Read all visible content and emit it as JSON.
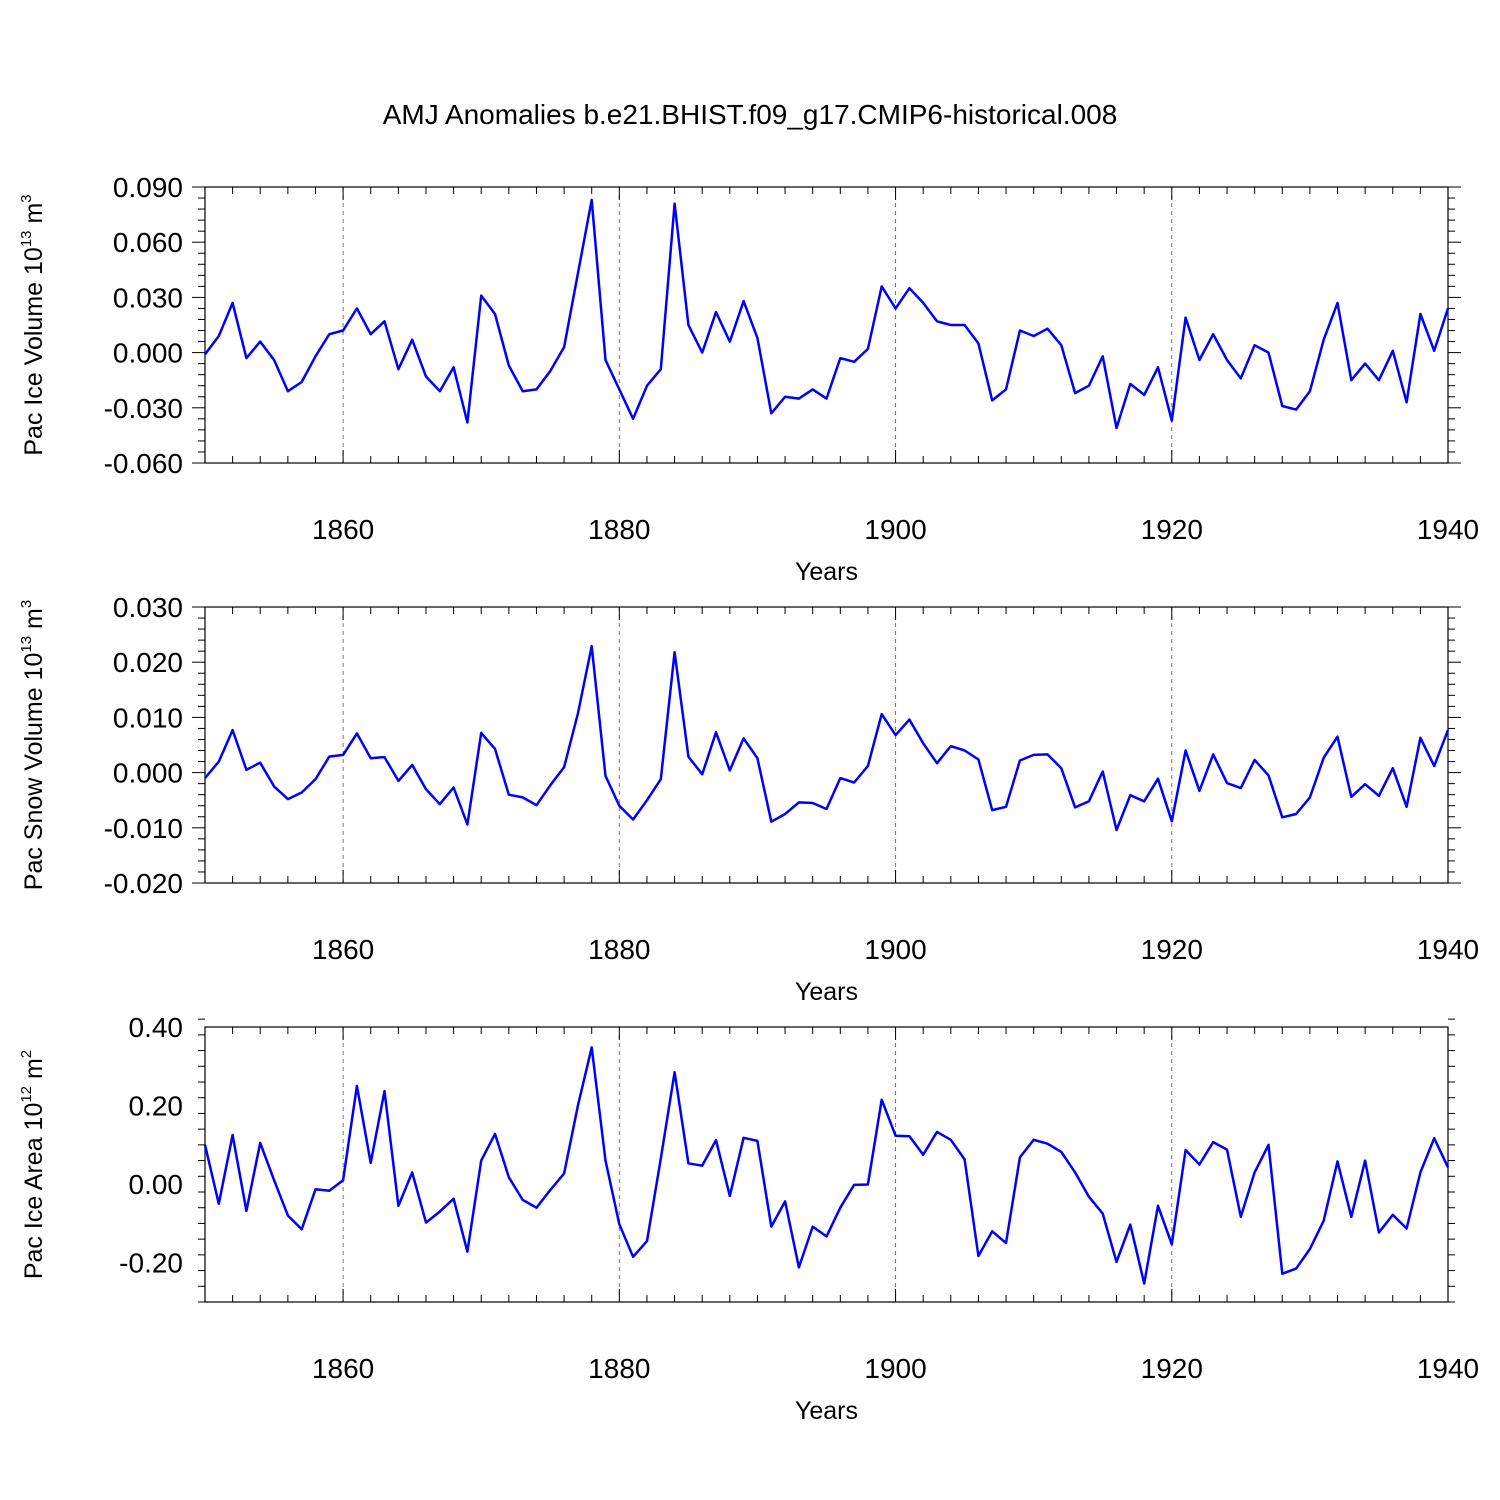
{
  "title": "AMJ Anomalies b.e21.BHIST.f09_g17.CMIP6-historical.008",
  "line_color": "#0000ff",
  "chart_data": [
    {
      "type": "line",
      "ylabel_main": "Pac Ice Volume 10",
      "ylabel_exp": "13",
      "ylabel_unit": " m",
      "ylabel_unit_exp": "3",
      "xlabel": "Years",
      "xlim": [
        1850,
        1940
      ],
      "ylim": [
        -0.06,
        0.09
      ],
      "yticks": [
        -0.06,
        -0.03,
        0.0,
        0.03,
        0.06,
        0.09
      ],
      "ytick_labels": [
        "-0.060",
        "-0.030",
        "0.000",
        "0.030",
        "0.060",
        "0.090"
      ],
      "xticks": [
        1860,
        1880,
        1900,
        1920,
        1940
      ],
      "xtick_labels": [
        "1860",
        "1880",
        "1900",
        "1920",
        "1940"
      ],
      "x_start": 1850,
      "values": [
        -0.001,
        0.009,
        0.027,
        -0.003,
        0.006,
        -0.004,
        -0.021,
        -0.016,
        -0.002,
        0.01,
        0.012,
        0.024,
        0.01,
        0.017,
        -0.009,
        0.007,
        -0.013,
        -0.021,
        -0.008,
        -0.038,
        0.031,
        0.021,
        -0.007,
        -0.021,
        -0.02,
        -0.01,
        0.003,
        0.043,
        0.083,
        -0.004,
        -0.02,
        -0.036,
        -0.018,
        -0.009,
        0.081,
        0.015,
        0.0,
        0.022,
        0.006,
        0.028,
        0.008,
        -0.033,
        -0.024,
        -0.025,
        -0.02,
        -0.025,
        -0.003,
        -0.005,
        0.002,
        0.036,
        0.024,
        0.035,
        0.027,
        0.017,
        0.015,
        0.015,
        0.005,
        -0.026,
        -0.02,
        0.012,
        0.009,
        0.013,
        0.004,
        -0.022,
        -0.018,
        -0.002,
        -0.041,
        -0.017,
        -0.023,
        -0.008,
        -0.037,
        0.019,
        -0.004,
        0.01,
        -0.004,
        -0.014,
        0.004,
        0.0,
        -0.029,
        -0.031,
        -0.021,
        0.007,
        0.027,
        -0.015,
        -0.006,
        -0.015,
        0.001,
        -0.027,
        0.021,
        0.001,
        0.024
      ]
    },
    {
      "type": "line",
      "ylabel_main": "Pac Snow Volume 10",
      "ylabel_exp": "13",
      "ylabel_unit": " m",
      "ylabel_unit_exp": "3",
      "xlabel": "Years",
      "xlim": [
        1850,
        1940
      ],
      "ylim": [
        -0.02,
        0.03
      ],
      "yticks": [
        -0.02,
        -0.01,
        0.0,
        0.01,
        0.02,
        0.03
      ],
      "ytick_labels": [
        "-0.020",
        "-0.010",
        "0.000",
        "0.010",
        "0.020",
        "0.030"
      ],
      "xticks": [
        1860,
        1880,
        1900,
        1920,
        1940
      ],
      "xtick_labels": [
        "1860",
        "1880",
        "1900",
        "1920",
        "1940"
      ],
      "x_start": 1850,
      "values": [
        -0.001,
        0.002,
        0.0077,
        0.0005,
        0.0018,
        -0.0025,
        -0.0048,
        -0.0036,
        -0.0012,
        0.0029,
        0.0032,
        0.0071,
        0.0026,
        0.0028,
        -0.0015,
        0.0014,
        -0.003,
        -0.0057,
        -0.0027,
        -0.0094,
        0.0072,
        0.0043,
        -0.004,
        -0.0045,
        -0.0059,
        -0.0023,
        0.001,
        0.0107,
        0.0229,
        -0.0006,
        -0.006,
        -0.0085,
        -0.005,
        -0.0012,
        0.0218,
        0.0029,
        -0.0003,
        0.0073,
        0.0004,
        0.0062,
        0.0026,
        -0.0089,
        -0.0075,
        -0.0054,
        -0.0055,
        -0.0066,
        -0.001,
        -0.0018,
        0.0012,
        0.0106,
        0.0068,
        0.0096,
        0.0053,
        0.0017,
        0.0048,
        0.004,
        0.0024,
        -0.0068,
        -0.0062,
        0.0022,
        0.0032,
        0.0033,
        0.0008,
        -0.0063,
        -0.0052,
        0.0002,
        -0.0104,
        -0.0041,
        -0.0052,
        -0.0011,
        -0.0088,
        0.004,
        -0.0033,
        0.0033,
        -0.0019,
        -0.0028,
        0.0023,
        -0.0005,
        -0.0081,
        -0.0075,
        -0.0045,
        0.0027,
        0.0065,
        -0.0044,
        -0.0021,
        -0.0042,
        0.0008,
        -0.0062,
        0.0063,
        0.0012,
        0.0077
      ]
    },
    {
      "type": "line",
      "ylabel_main": "Pac Ice Area 10",
      "ylabel_exp": "12",
      "ylabel_unit": " m",
      "ylabel_unit_exp": "2",
      "xlabel": "Years",
      "xlim": [
        1850,
        1940
      ],
      "ylim": [
        -0.3,
        0.4
      ],
      "yticks": [
        -0.2,
        0.0,
        0.2,
        0.4
      ],
      "ytick_labels": [
        "-0.20",
        "0.00",
        "0.20",
        "0.40"
      ],
      "xticks": [
        1860,
        1880,
        1900,
        1920,
        1940
      ],
      "xtick_labels": [
        "1860",
        "1880",
        "1900",
        "1920",
        "1940"
      ],
      "x_start": 1850,
      "values": [
        0.1,
        -0.05,
        0.125,
        -0.068,
        0.105,
        0.01,
        -0.08,
        -0.115,
        -0.013,
        -0.017,
        0.01,
        0.25,
        0.054,
        0.237,
        -0.055,
        0.03,
        -0.098,
        -0.07,
        -0.037,
        -0.172,
        0.06,
        0.128,
        0.018,
        -0.04,
        -0.06,
        -0.015,
        0.027,
        0.2,
        0.348,
        0.06,
        -0.102,
        -0.185,
        -0.145,
        0.065,
        0.285,
        0.053,
        0.047,
        0.112,
        -0.03,
        0.118,
        0.11,
        -0.108,
        -0.044,
        -0.212,
        -0.108,
        -0.133,
        -0.06,
        -0.002,
        -0.001,
        0.215,
        0.123,
        0.122,
        0.075,
        0.133,
        0.113,
        0.063,
        -0.183,
        -0.12,
        -0.15,
        0.068,
        0.113,
        0.103,
        0.082,
        0.03,
        -0.032,
        -0.075,
        -0.198,
        -0.103,
        -0.253,
        -0.055,
        -0.153,
        0.087,
        0.05,
        0.107,
        0.088,
        -0.083,
        0.03,
        0.1,
        -0.228,
        -0.215,
        -0.165,
        -0.093,
        0.058,
        -0.083,
        0.06,
        -0.123,
        -0.078,
        -0.113,
        0.03,
        0.117,
        0.043
      ]
    }
  ]
}
